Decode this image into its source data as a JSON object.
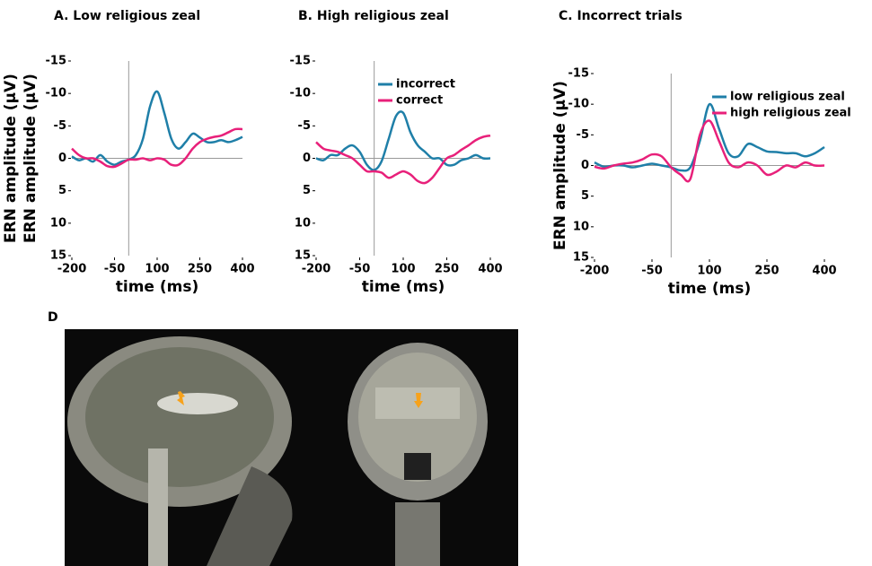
{
  "chart_data": [
    {
      "type": "line",
      "title": "A. Low religious zeal",
      "xlabel": "time (ms)",
      "ylabel": "ERN amplitude (μV)",
      "x": [
        -200,
        -175,
        -150,
        -125,
        -100,
        -75,
        -50,
        -25,
        0,
        25,
        50,
        75,
        100,
        125,
        150,
        175,
        200,
        225,
        250,
        275,
        300,
        325,
        350,
        375,
        400
      ],
      "series": [
        {
          "color": "#1f7fa8",
          "values": [
            -0.3,
            0.3,
            0,
            0.5,
            -0.5,
            0.5,
            1,
            0.5,
            0.2,
            -0.5,
            -3,
            -8,
            -10.3,
            -7,
            -3,
            -1.5,
            -2.5,
            -3.8,
            -3.2,
            -2.5,
            -2.5,
            -2.8,
            -2.5,
            -2.8,
            -3.3
          ]
        },
        {
          "color": "#e8207a",
          "values": [
            -1.5,
            -0.5,
            0,
            0,
            0.5,
            1.2,
            1.3,
            0.8,
            0.2,
            0.2,
            0,
            0.3,
            0,
            0.2,
            1,
            1,
            0,
            -1.5,
            -2.5,
            -3,
            -3.3,
            -3.5,
            -4,
            -4.5,
            -4.5
          ]
        }
      ],
      "xlim": [
        -200,
        400
      ],
      "xticks": [
        -200,
        -50,
        100,
        250,
        400
      ],
      "ylim": [
        15,
        -15
      ],
      "yticks": [
        -15,
        -10,
        -5,
        0,
        5,
        10,
        15
      ],
      "vline": 0,
      "hline": 0
    },
    {
      "type": "line",
      "title": "B. High religious zeal",
      "xlabel": "time (ms)",
      "ylabel": "ERN amplitude (μV)",
      "x": [
        -200,
        -175,
        -150,
        -125,
        -100,
        -75,
        -50,
        -25,
        0,
        25,
        50,
        75,
        100,
        125,
        150,
        175,
        200,
        225,
        250,
        275,
        300,
        325,
        350,
        375,
        400
      ],
      "series": [
        {
          "name": "incorrect",
          "color": "#1f7fa8",
          "values": [
            0,
            0.3,
            -0.5,
            -0.5,
            -1.5,
            -2,
            -1,
            1,
            1.8,
            0.5,
            -3,
            -6.5,
            -7,
            -4,
            -2,
            -1,
            0,
            0,
            1,
            1,
            0.3,
            0,
            -0.5,
            0,
            0
          ]
        },
        {
          "name": "correct",
          "color": "#e8207a",
          "values": [
            -2.5,
            -1.5,
            -1.2,
            -1,
            -0.5,
            0,
            1,
            2,
            2,
            2.2,
            3,
            2.5,
            2,
            2.5,
            3.5,
            3.8,
            3,
            1.5,
            0,
            -0.5,
            -1.3,
            -2,
            -2.8,
            -3.3,
            -3.5
          ]
        }
      ],
      "xlim": [
        -200,
        400
      ],
      "xticks": [
        -200,
        -50,
        100,
        250,
        400
      ],
      "ylim": [
        15,
        -15
      ],
      "yticks": [
        -15,
        -10,
        -5,
        0,
        5,
        10,
        15
      ],
      "vline": 0,
      "hline": 0,
      "legend": "upper right"
    },
    {
      "type": "line",
      "title": "C. Incorrect trials",
      "xlabel": "time (ms)",
      "ylabel": "ERN amplitude (μV)",
      "x": [
        -200,
        -175,
        -150,
        -125,
        -100,
        -75,
        -50,
        -25,
        0,
        25,
        50,
        75,
        100,
        125,
        150,
        175,
        200,
        225,
        250,
        275,
        300,
        325,
        350,
        375,
        400
      ],
      "series": [
        {
          "name": "low religious zeal",
          "color": "#1f7fa8",
          "values": [
            -0.5,
            0.2,
            0,
            0,
            0.3,
            0,
            -0.3,
            0,
            0.3,
            0.8,
            0.3,
            -4,
            -10,
            -6,
            -2,
            -1.5,
            -3.5,
            -3,
            -2.3,
            -2.2,
            -2,
            -2,
            -1.5,
            -2,
            -3
          ]
        },
        {
          "name": "high religious zeal",
          "color": "#e8207a",
          "values": [
            0.2,
            0.5,
            0,
            -0.3,
            -0.5,
            -1,
            -1.8,
            -1.5,
            0.3,
            1.5,
            2.2,
            -5,
            -7.3,
            -4,
            -0.5,
            0.3,
            -0.5,
            0,
            1.5,
            1,
            0,
            0.3,
            -0.5,
            0,
            0
          ]
        }
      ],
      "xlim": [
        -200,
        400
      ],
      "xticks": [
        -200,
        -50,
        100,
        250,
        400
      ],
      "ylim": [
        15,
        -15
      ],
      "yticks": [
        -15,
        -10,
        -5,
        0,
        5,
        10,
        15
      ],
      "vline": 0,
      "hline": 0,
      "legend": "upper right"
    }
  ],
  "panel_d": {
    "label": "D"
  }
}
